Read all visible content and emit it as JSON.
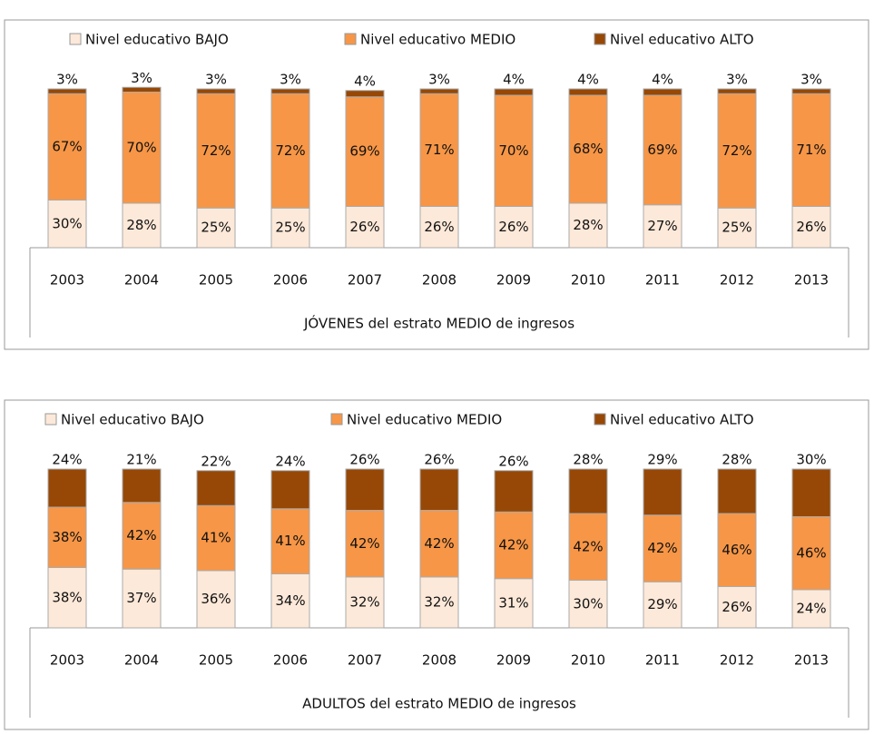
{
  "chart_data": [
    {
      "type": "bar",
      "stacked": true,
      "x_label": "JÓVENES del estrato MEDIO de ingresos",
      "legend": "top",
      "categories": [
        "2003",
        "2004",
        "2005",
        "2006",
        "2007",
        "2008",
        "2009",
        "2010",
        "2011",
        "2012",
        "2013"
      ],
      "ylim": [
        0,
        100
      ],
      "series": [
        {
          "name": "Nivel educativo BAJO",
          "color": "#fde9d9",
          "values": [
            30,
            28,
            25,
            25,
            26,
            26,
            26,
            28,
            27,
            25,
            26
          ],
          "value_labels": [
            "30%",
            "28%",
            "25%",
            "25%",
            "26%",
            "26%",
            "26%",
            "28%",
            "27%",
            "25%",
            "26%"
          ]
        },
        {
          "name": "Nivel educativo MEDIO",
          "color": "#f79646",
          "values": [
            67,
            70,
            72,
            72,
            69,
            71,
            70,
            68,
            69,
            72,
            71
          ],
          "value_labels": [
            "67%",
            "70%",
            "72%",
            "72%",
            "69%",
            "71%",
            "70%",
            "68%",
            "69%",
            "72%",
            "71%"
          ]
        },
        {
          "name": "Nivel educativo ALTO",
          "color": "#974806",
          "values": [
            3,
            3,
            3,
            3,
            4,
            3,
            4,
            4,
            4,
            3,
            3
          ],
          "value_labels": [
            "3%",
            "3%",
            "3%",
            "3%",
            "4%",
            "3%",
            "4%",
            "4%",
            "4%",
            "3%",
            "3%"
          ]
        }
      ]
    },
    {
      "type": "bar",
      "stacked": true,
      "x_label": "ADULTOS del estrato MEDIO de ingresos",
      "legend": "top",
      "categories": [
        "2003",
        "2004",
        "2005",
        "2006",
        "2007",
        "2008",
        "2009",
        "2010",
        "2011",
        "2012",
        "2013"
      ],
      "ylim": [
        0,
        100
      ],
      "series": [
        {
          "name": "Nivel educativo BAJO",
          "color": "#fde9d9",
          "values": [
            38,
            37,
            36,
            34,
            32,
            32,
            31,
            30,
            29,
            26,
            24
          ],
          "value_labels": [
            "38%",
            "37%",
            "36%",
            "34%",
            "32%",
            "32%",
            "31%",
            "30%",
            "29%",
            "26%",
            "24%"
          ]
        },
        {
          "name": "Nivel educativo MEDIO",
          "color": "#f79646",
          "values": [
            38,
            42,
            41,
            41,
            42,
            42,
            42,
            42,
            42,
            46,
            46
          ],
          "value_labels": [
            "38%",
            "42%",
            "41%",
            "41%",
            "42%",
            "42%",
            "42%",
            "42%",
            "42%",
            "46%",
            "46%"
          ]
        },
        {
          "name": "Nivel educativo ALTO",
          "color": "#974806",
          "values": [
            24,
            21,
            22,
            24,
            26,
            26,
            26,
            28,
            29,
            28,
            30
          ],
          "value_labels": [
            "24%",
            "21%",
            "22%",
            "24%",
            "26%",
            "26%",
            "26%",
            "28%",
            "29%",
            "28%",
            "30%"
          ]
        }
      ]
    }
  ]
}
